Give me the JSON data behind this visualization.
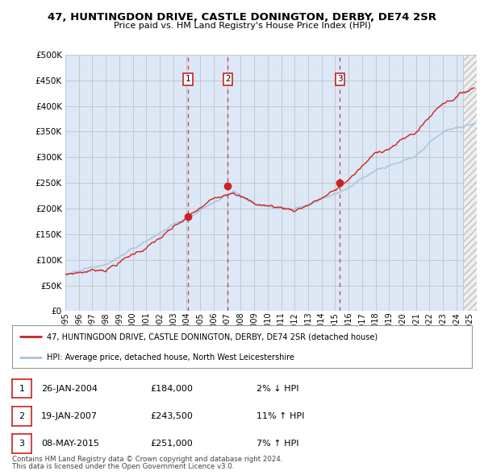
{
  "title": "47, HUNTINGDON DRIVE, CASTLE DONINGTON, DERBY, DE74 2SR",
  "subtitle": "Price paid vs. HM Land Registry's House Price Index (HPI)",
  "legend_property": "47, HUNTINGDON DRIVE, CASTLE DONINGTON, DERBY, DE74 2SR (detached house)",
  "legend_hpi": "HPI: Average price, detached house, North West Leicestershire",
  "footer1": "Contains HM Land Registry data © Crown copyright and database right 2024.",
  "footer2": "This data is licensed under the Open Government Licence v3.0.",
  "transactions": [
    {
      "num": 1,
      "date": "26-JAN-2004",
      "price": 184000,
      "pct": "2%",
      "dir": "↓"
    },
    {
      "num": 2,
      "date": "19-JAN-2007",
      "price": 243500,
      "pct": "11%",
      "dir": "↑"
    },
    {
      "num": 3,
      "date": "08-MAY-2015",
      "price": 251000,
      "pct": "7%",
      "dir": "↑"
    }
  ],
  "t1_x": 2004.07,
  "t2_x": 2007.05,
  "t3_x": 2015.36,
  "t1_y": 184000,
  "t2_y": 243500,
  "t3_y": 251000,
  "ylim": [
    0,
    500000
  ],
  "xlim_start": 1995.0,
  "xlim_end": 2025.5,
  "hatch_start": 2024.5,
  "hpi_color": "#a8c4e0",
  "property_color": "#cc2222",
  "marker_color": "#cc2222",
  "bg_color": "#ffffff",
  "plot_bg": "#dce8f5",
  "grid_color": "#bbbbbb",
  "yticks": [
    0,
    50000,
    100000,
    150000,
    200000,
    250000,
    300000,
    350000,
    400000,
    450000,
    500000
  ],
  "xtick_years": [
    1995,
    1996,
    1997,
    1998,
    1999,
    2000,
    2001,
    2002,
    2003,
    2004,
    2005,
    2006,
    2007,
    2008,
    2009,
    2010,
    2011,
    2012,
    2013,
    2014,
    2015,
    2016,
    2017,
    2018,
    2019,
    2020,
    2021,
    2022,
    2023,
    2024,
    2025
  ]
}
